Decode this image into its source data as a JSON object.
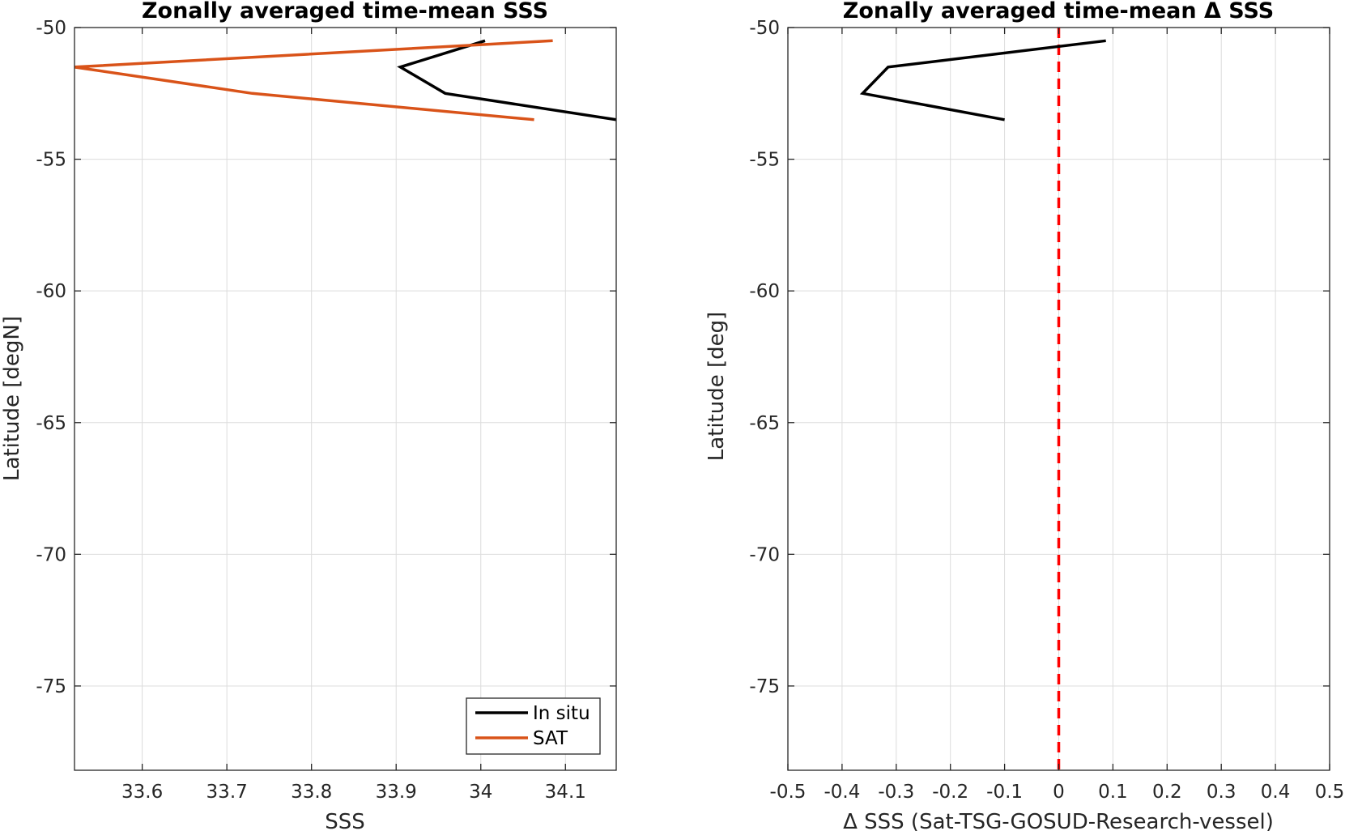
{
  "colors": {
    "in_situ": "#000000",
    "sat": "#d95319",
    "zero_line": "#ff0000",
    "grid": "#dcdcdc",
    "axes": "#262626"
  },
  "chart_data": [
    {
      "type": "line",
      "title": "Zonally averaged time-mean SSS",
      "xlabel": "SSS",
      "ylabel": "Latitude [degN]",
      "xlim": [
        33.52,
        34.16
      ],
      "ylim": [
        -78.2,
        -50
      ],
      "xticks": [
        33.6,
        33.7,
        33.8,
        33.9,
        34,
        34.1
      ],
      "xtick_labels": [
        "33.6",
        "33.7",
        "33.8",
        "33.9",
        "34",
        "34.1"
      ],
      "yticks": [
        -75,
        -70,
        -65,
        -60,
        -55,
        -50
      ],
      "ytick_labels": [
        "-75",
        "-70",
        "-65",
        "-60",
        "-55",
        "-50"
      ],
      "grid": true,
      "legend_position": "bottom-right",
      "series": [
        {
          "name": "In situ",
          "color_key": "in_situ",
          "x": [
            34.005,
            33.905,
            33.958,
            34.16
          ],
          "y": [
            -50.5,
            -51.5,
            -52.5,
            -53.5
          ]
        },
        {
          "name": "SAT",
          "color_key": "sat",
          "x": [
            34.085,
            33.52,
            33.73,
            34.063
          ],
          "y": [
            -50.5,
            -51.5,
            -52.5,
            -53.5
          ]
        }
      ]
    },
    {
      "type": "line",
      "title": "Zonally averaged time-mean Δ SSS",
      "xlabel": "Δ SSS (Sat-TSG-GOSUD-Research-vessel)",
      "ylabel": "Latitude [deg]",
      "xlim": [
        -0.5,
        0.5
      ],
      "ylim": [
        -78.2,
        -50
      ],
      "xticks": [
        -0.5,
        -0.4,
        -0.3,
        -0.2,
        -0.1,
        0,
        0.1,
        0.2,
        0.3,
        0.4,
        0.5
      ],
      "xtick_labels": [
        "-0.5",
        "-0.4",
        "-0.3",
        "-0.2",
        "-0.1",
        "0",
        "0.1",
        "0.2",
        "0.3",
        "0.4",
        "0.5"
      ],
      "yticks": [
        -75,
        -70,
        -65,
        -60,
        -55,
        -50
      ],
      "ytick_labels": [
        "-75",
        "-70",
        "-65",
        "-60",
        "-55",
        "-50"
      ],
      "grid": true,
      "series": [
        {
          "color_key": "in_situ",
          "x": [
            0.087,
            -0.315,
            -0.362,
            -0.1
          ],
          "y": [
            -50.5,
            -51.5,
            -52.5,
            -53.5
          ]
        }
      ],
      "reference_line": {
        "x": 0,
        "style": "dashed",
        "color_key": "zero_line"
      }
    }
  ]
}
